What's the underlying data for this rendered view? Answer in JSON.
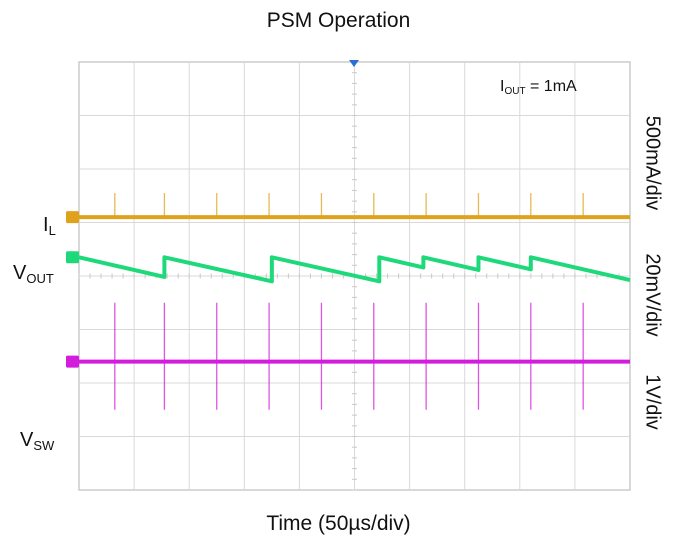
{
  "chart_data": {
    "type": "line",
    "title": "PSM Operation",
    "xlabel": "Time (50µs/div)",
    "annotation": {
      "label": "I",
      "sub": "OUT",
      "value": "=  1mA"
    },
    "x_divisions": 10,
    "y_divisions": 8,
    "series": [
      {
        "name": "IL",
        "label": "I",
        "sub": "L",
        "scale": "500mA/div",
        "color": "#E0A21B",
        "kind": "baseline_with_pulses",
        "baseline_div": 5.1,
        "pulse_height_div": 0.45,
        "pulses_div": [
          0.65,
          1.55,
          2.5,
          3.45,
          4.4,
          5.35,
          6.3,
          7.25,
          8.2,
          9.15
        ]
      },
      {
        "name": "VOUT",
        "label": "V",
        "sub": "OUT",
        "scale": "20mV/div",
        "color": "#1DD97A",
        "kind": "sawtooth",
        "top_div": 4.35,
        "bottom_div": 3.9,
        "resets_div": [
          0.0,
          1.55,
          3.5,
          5.45,
          6.25,
          7.25,
          8.2
        ],
        "end_div": 10
      },
      {
        "name": "VSW",
        "label": "V",
        "sub": "SW",
        "scale": "1V/div",
        "color": "#D21DDD",
        "kind": "baseline_with_pulses",
        "baseline_div": 2.4,
        "pulse_height_div": 1.1,
        "pulse_depth_div": 0.9,
        "pulses_div": [
          0.65,
          1.55,
          2.5,
          3.45,
          4.4,
          5.35,
          6.3,
          7.25,
          8.2,
          9.15
        ]
      }
    ],
    "grid": true
  }
}
